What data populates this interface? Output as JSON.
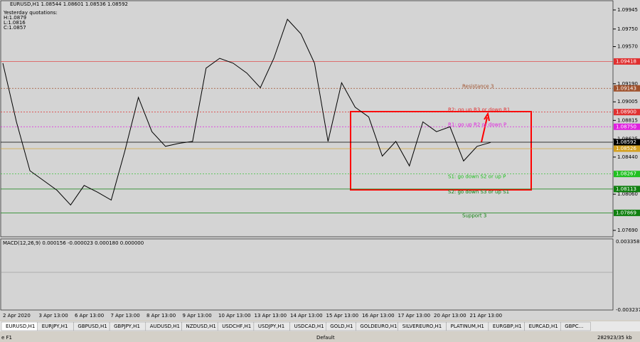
{
  "header": {
    "symbol_line": "EURUSD,H1  1.08544 1.08601 1.08536 1.08592",
    "yesterday": [
      "Yesterday quotations:",
      "H:1.0879",
      "L:1.0816",
      "C:1.0857"
    ]
  },
  "price_axis": {
    "ylim": [
      1.0769,
      1.09945
    ],
    "ticks": [
      {
        "value": 1.09945,
        "label": "1.09945"
      },
      {
        "value": 1.0975,
        "label": "1.09750"
      },
      {
        "value": 1.0957,
        "label": "1.09570"
      },
      {
        "value": 1.0919,
        "label": "1.09190"
      },
      {
        "value": 1.09005,
        "label": "1.09005"
      },
      {
        "value": 1.08815,
        "label": "1.08815"
      },
      {
        "value": 1.08625,
        "label": "1.08625"
      },
      {
        "value": 1.0844,
        "label": "1.08440"
      },
      {
        "value": 1.0806,
        "label": "1.08060"
      },
      {
        "value": 1.0769,
        "label": "1.07690"
      }
    ]
  },
  "levels": [
    {
      "value": 1.09418,
      "label": "1.09418",
      "color": "#e03030"
    },
    {
      "value": 1.09143,
      "label": "1.09143",
      "color": "#a0522d",
      "text": "Resistance 3"
    },
    {
      "value": 1.089,
      "label": "1.08900",
      "color": "#e03030",
      "text": "R2: go up R3 or down R1"
    },
    {
      "value": 1.0875,
      "label": "1.08750",
      "color": "#e020e0",
      "text": "R1: go up R2 or down P"
    },
    {
      "value": 1.08592,
      "label": "1.08592",
      "color": "#000000"
    },
    {
      "value": 1.08526,
      "label": "1.08526",
      "color": "#d4a020"
    },
    {
      "value": 1.08267,
      "label": "1.08267",
      "color": "#20c020",
      "text": "S1: go down S2 or up P"
    },
    {
      "value": 1.08113,
      "label": "1.08113",
      "color": "#108010",
      "text": "S2: go down S3 or up S1"
    },
    {
      "value": 1.07869,
      "label": "1.07869",
      "color": "#108010",
      "text": "Support 3"
    }
  ],
  "price": {
    "closes": [
      1.094,
      1.088,
      1.083,
      1.082,
      1.081,
      1.0795,
      1.0815,
      1.0808,
      1.08,
      1.085,
      1.0905,
      1.087,
      1.0855,
      1.0858,
      1.086,
      1.0935,
      1.0945,
      1.094,
      1.093,
      1.0915,
      1.0945,
      1.0985,
      1.097,
      1.094,
      1.086,
      1.092,
      1.0895,
      1.0885,
      1.0845,
      1.086,
      1.0835,
      1.088,
      1.087,
      1.0875,
      1.084,
      1.0855,
      1.0859
    ],
    "color": "#000000"
  },
  "macd": {
    "label": "MACD(12,26,9) 0.000156 -0.000023 0.000180 0.000000",
    "ticks": [
      "0.003358",
      "-0.003237"
    ]
  },
  "dates": [
    "2 Apr 2020",
    "3 Apr 13:00",
    "6 Apr 13:00",
    "7 Apr 13:00",
    "8 Apr 13:00",
    "9 Apr 13:00",
    "10 Apr 13:00",
    "13 Apr 13:00",
    "14 Apr 13:00",
    "15 Apr 13:00",
    "16 Apr 13:00",
    "17 Apr 13:00",
    "20 Apr 13:00",
    "21 Apr 13:00"
  ],
  "tabs": [
    "EURUSD,H1",
    "EURJPY,H1",
    "GBPUSD,H1",
    "GBPJPY,H1",
    "AUDUSD,H1",
    "NZDUSD,H1",
    "USDCHF,H1",
    "USDJPY,H1",
    "USDCAD,H1",
    "GOLD,H1",
    "GOLDEURO,H1",
    "SILVEREURO,H1",
    "PLATINUM,H1",
    "EURGBP,H1",
    "EURCAD,H1",
    "GBPC..."
  ],
  "status": {
    "left": "e F1",
    "middle": "Default",
    "right": "282923/35 kb"
  }
}
